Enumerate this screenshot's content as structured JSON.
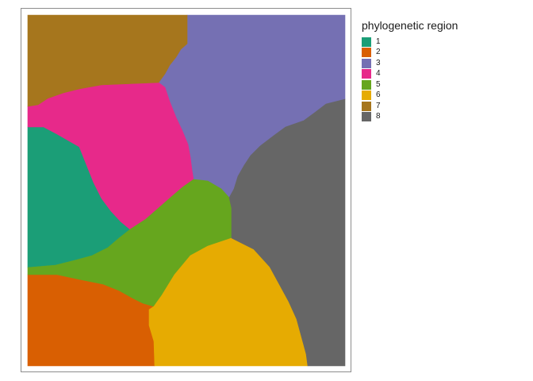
{
  "legend": {
    "title": "phylogenetic region",
    "items": [
      {
        "label": "1",
        "color": "#1b9e77"
      },
      {
        "label": "2",
        "color": "#d95f02"
      },
      {
        "label": "3",
        "color": "#7570b3"
      },
      {
        "label": "4",
        "color": "#e7298a"
      },
      {
        "label": "5",
        "color": "#66a61e"
      },
      {
        "label": "6",
        "color": "#e6ab02"
      },
      {
        "label": "7",
        "color": "#a6761d"
      },
      {
        "label": "8",
        "color": "#666666"
      }
    ]
  },
  "map": {
    "regions": [
      {
        "label": "1",
        "color": "#1b9e77"
      },
      {
        "label": "2",
        "color": "#d95f02"
      },
      {
        "label": "3",
        "color": "#7570b3"
      },
      {
        "label": "4",
        "color": "#e7298a"
      },
      {
        "label": "5",
        "color": "#66a61e"
      },
      {
        "label": "6",
        "color": "#e6ab02"
      },
      {
        "label": "7",
        "color": "#a6761d"
      },
      {
        "label": "8",
        "color": "#666666"
      }
    ]
  }
}
